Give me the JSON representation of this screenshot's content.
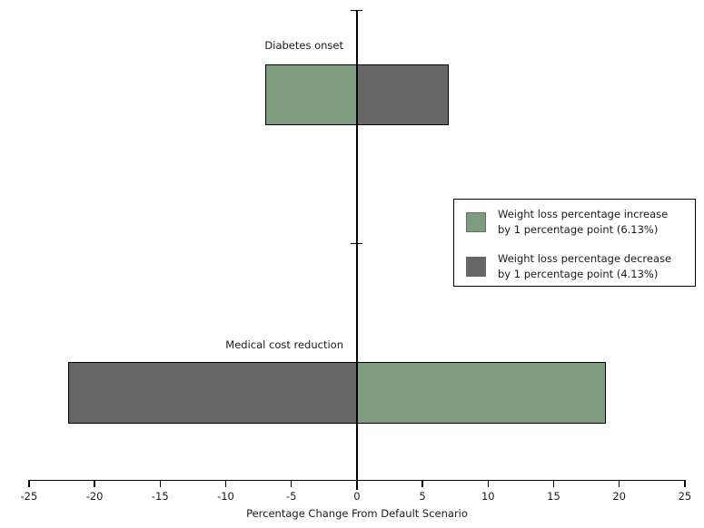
{
  "chart_data": {
    "type": "bar",
    "orientation": "horizontal",
    "title": "",
    "xlabel": "Percentage Change From Default Scenario",
    "ylabel": "",
    "xlim": [
      -25,
      25
    ],
    "xticks": [
      -25,
      -20,
      -15,
      -10,
      -5,
      0,
      5,
      10,
      15,
      20,
      25
    ],
    "grid": false,
    "categories": [
      "Diabetes onset",
      "Medical cost reduction"
    ],
    "series": [
      {
        "name": "Weight loss percentage increase by 1 percentage point (6.13%)",
        "color": "#7D9C80",
        "values": [
          -7,
          19
        ]
      },
      {
        "name": "Weight loss percentage decrease by 1 percentage point (4.13%)",
        "color": "#666666",
        "values": [
          7,
          -22
        ]
      }
    ],
    "legend_position": "middle-right"
  },
  "legend": {
    "entries": [
      {
        "line1": "Weight loss percentage increase",
        "line2": "by 1 percentage point (6.13%)",
        "color": "#7D9C80"
      },
      {
        "line1": "Weight loss percentage decrease",
        "line2": "by 1 percentage point (4.13%)",
        "color": "#666666"
      }
    ]
  },
  "colors": {
    "bar_border": "#000000",
    "axis": "#000000",
    "background": "#ffffff"
  }
}
